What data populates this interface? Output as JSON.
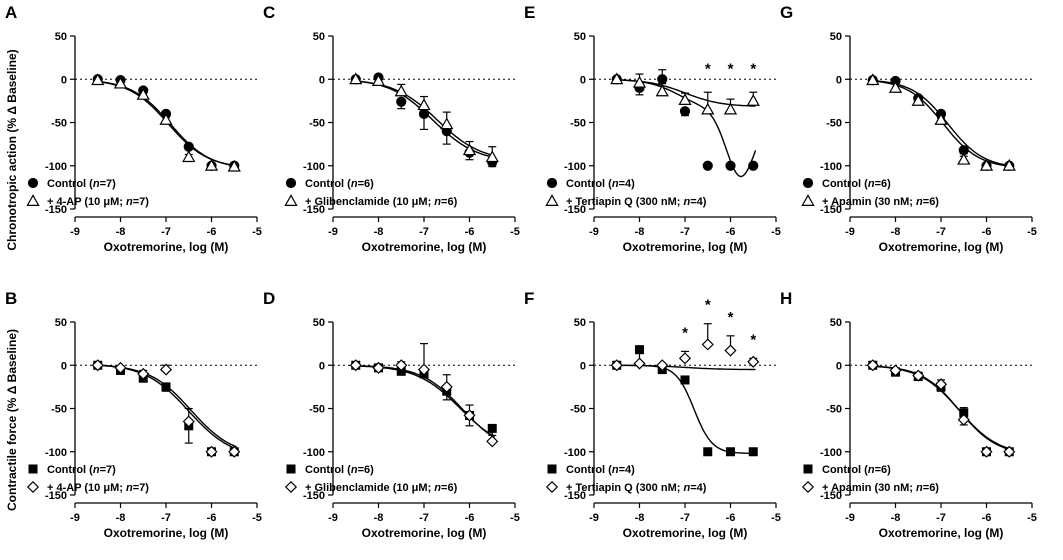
{
  "figure": {
    "y_axis_titles": [
      "Chronotropic action (% Δ Baseline)",
      "Contractile force (% Δ Baseline)"
    ]
  },
  "chart_data": [
    {
      "panel": "A",
      "type": "scatter",
      "title": "",
      "xlabel": "Oxotremorine, log (M)",
      "ylabel": "Chronotropic action (% Δ Baseline)",
      "xlim": [
        -9,
        -5
      ],
      "ylim": [
        -150,
        50
      ],
      "xticks": [
        -9,
        -8,
        -7,
        -6,
        -5
      ],
      "yticks": [
        50,
        0,
        -50,
        -100,
        -150
      ],
      "series": [
        {
          "name": "Control",
          "legend_label": "Control (n=7)",
          "marker": "circle",
          "x": [
            -8.5,
            -8,
            -7.5,
            -7,
            -6.5,
            -6,
            -5.5
          ],
          "y": [
            0,
            -1,
            -13,
            -40,
            -78,
            -100,
            -100
          ],
          "err": [
            1,
            1,
            2,
            3,
            3,
            1,
            1
          ],
          "fit": {
            "top": 0,
            "bottom": -104,
            "ec50": -6.9,
            "hill": 1
          }
        },
        {
          "name": "+ 4-AP",
          "legend_label": "+ 4-AP (10 μM; n=7)",
          "marker": "triangle",
          "x": [
            -8.5,
            -8,
            -7.5,
            -7,
            -6.5,
            -6,
            -5.5
          ],
          "y": [
            -1,
            -5,
            -18,
            -47,
            -90,
            -100,
            -101
          ],
          "err": [
            1,
            1,
            2,
            3,
            3,
            1,
            1
          ],
          "fit": {
            "top": 0,
            "bottom": -103,
            "ec50": -6.95,
            "hill": 1
          }
        }
      ],
      "annotations": []
    },
    {
      "panel": "C",
      "type": "scatter",
      "title": "",
      "xlabel": "Oxotremorine, log (M)",
      "ylabel": "",
      "xlim": [
        -9,
        -5
      ],
      "ylim": [
        -150,
        50
      ],
      "xticks": [
        -9,
        -8,
        -7,
        -6,
        -5
      ],
      "yticks": [
        50,
        0,
        -50,
        -100,
        -150
      ],
      "series": [
        {
          "name": "Control",
          "legend_label": "Control (n=6)",
          "marker": "circle",
          "x": [
            -8.5,
            -8,
            -7.5,
            -7,
            -6.5,
            -6,
            -5.5
          ],
          "y": [
            0,
            2,
            -26,
            -40,
            -60,
            -85,
            -96
          ],
          "err": [
            2,
            2,
            8,
            18,
            15,
            8,
            5
          ],
          "fit": {
            "top": 1,
            "bottom": -96,
            "ec50": -6.8,
            "hill": 0.9
          }
        },
        {
          "name": "+ Glibenclamide",
          "legend_label": "+ Glibenclamide (10 μM; n=6)",
          "marker": "triangle",
          "x": [
            -8.5,
            -8,
            -7.5,
            -7,
            -6.5,
            -6,
            -5.5
          ],
          "y": [
            0,
            -2,
            -14,
            -30,
            -52,
            -82,
            -90
          ],
          "err": [
            2,
            2,
            8,
            10,
            14,
            10,
            12
          ],
          "fit": {
            "top": 0,
            "bottom": -95,
            "ec50": -6.7,
            "hill": 0.9
          }
        }
      ],
      "annotations": []
    },
    {
      "panel": "E",
      "type": "scatter",
      "title": "",
      "xlabel": "Oxotremorine, log (M)",
      "ylabel": "",
      "xlim": [
        -9,
        -5
      ],
      "ylim": [
        -150,
        50
      ],
      "xticks": [
        -9,
        -8,
        -7,
        -6,
        -5
      ],
      "yticks": [
        50,
        0,
        -50,
        -100,
        -150
      ],
      "series": [
        {
          "name": "Control",
          "legend_label": "Control (n=4)",
          "marker": "circle",
          "x": [
            -8.5,
            -8,
            -7.5,
            -7,
            -6.5,
            -6,
            -5.5
          ],
          "y": [
            0,
            -10,
            0,
            -37,
            -100,
            -100,
            -100
          ],
          "err": [
            3,
            8,
            5,
            5,
            2,
            2,
            2
          ],
          "fit": "bell"
        },
        {
          "name": "+ Tertiapin Q",
          "legend_label": "+ Tertiapin Q (300 nM; n=4)",
          "marker": "triangle",
          "x": [
            -8.5,
            -8,
            -7.5,
            -7,
            -6.5,
            -6,
            -5.5
          ],
          "y": [
            0,
            -4,
            -14,
            -24,
            -35,
            -35,
            -25
          ],
          "err": [
            2,
            10,
            25,
            8,
            20,
            12,
            10
          ],
          "fit": "flat"
        }
      ],
      "annotations": [
        {
          "x": -6.5,
          "y": 0,
          "text": "*"
        },
        {
          "x": -6,
          "y": 0,
          "text": "*"
        },
        {
          "x": -5.5,
          "y": 0,
          "text": "*"
        }
      ]
    },
    {
      "panel": "G",
      "type": "scatter",
      "title": "",
      "xlabel": "Oxotremorine, log (M)",
      "ylabel": "",
      "xlim": [
        -9,
        -5
      ],
      "ylim": [
        -150,
        50
      ],
      "xticks": [
        -9,
        -8,
        -7,
        -6,
        -5
      ],
      "yticks": [
        50,
        0,
        -50,
        -100,
        -150
      ],
      "series": [
        {
          "name": "Control",
          "legend_label": "Control (n=6)",
          "marker": "circle",
          "x": [
            -8.5,
            -8,
            -7.5,
            -7,
            -6.5,
            -6,
            -5.5
          ],
          "y": [
            -1,
            -2,
            -22,
            -40,
            -82,
            -100,
            -100
          ],
          "err": [
            2,
            2,
            4,
            5,
            4,
            2,
            1
          ],
          "fit": {
            "top": 0,
            "bottom": -103,
            "ec50": -6.85,
            "hill": 1.1
          }
        },
        {
          "name": "+ Apamin",
          "legend_label": "+ Apamin (30 nM; n=6)",
          "marker": "triangle",
          "x": [
            -8.5,
            -8,
            -7.5,
            -7,
            -6.5,
            -6,
            -5.5
          ],
          "y": [
            -1,
            -10,
            -25,
            -47,
            -93,
            -100,
            -100
          ],
          "err": [
            2,
            2,
            4,
            5,
            4,
            2,
            1
          ],
          "fit": {
            "top": 0,
            "bottom": -103,
            "ec50": -6.95,
            "hill": 1.1
          }
        }
      ],
      "annotations": []
    },
    {
      "panel": "B",
      "type": "scatter",
      "title": "",
      "xlabel": "Oxotremorine, log (M)",
      "ylabel": "Contractile force (% Δ Baseline)",
      "xlim": [
        -9,
        -5
      ],
      "ylim": [
        -150,
        50
      ],
      "xticks": [
        -9,
        -8,
        -7,
        -6,
        -5
      ],
      "yticks": [
        50,
        0,
        -50,
        -100,
        -150
      ],
      "series": [
        {
          "name": "Control",
          "legend_label": "Control (n=7)",
          "marker": "square",
          "x": [
            -8.5,
            -8,
            -7.5,
            -7,
            -6.5,
            -6,
            -5.5
          ],
          "y": [
            0,
            -6,
            -15,
            -25,
            -70,
            -100,
            -100
          ],
          "err": [
            2,
            2,
            4,
            5,
            20,
            3,
            2
          ],
          "fit": {
            "top": 2,
            "bottom": -108,
            "ec50": -6.5,
            "hill": 0.9
          }
        },
        {
          "name": "+ 4-AP",
          "legend_label": "+ 4-AP (10 μM; n=7)",
          "marker": "diamond",
          "x": [
            -8.5,
            -8,
            -7.5,
            -7,
            -6.5,
            -6,
            -5.5
          ],
          "y": [
            0,
            -3,
            -10,
            -5,
            -65,
            -100,
            -100
          ],
          "err": [
            2,
            2,
            4,
            5,
            15,
            3,
            2
          ],
          "fit": {
            "top": 1,
            "bottom": -105,
            "ec50": -6.45,
            "hill": 0.95
          }
        }
      ],
      "annotations": []
    },
    {
      "panel": "D",
      "type": "scatter",
      "title": "",
      "xlabel": "Oxotremorine, log (M)",
      "ylabel": "",
      "xlim": [
        -9,
        -5
      ],
      "ylim": [
        -150,
        50
      ],
      "xticks": [
        -9,
        -8,
        -7,
        -6,
        -5
      ],
      "yticks": [
        50,
        0,
        -50,
        -100,
        -150
      ],
      "series": [
        {
          "name": "Control",
          "legend_label": "Control (n=6)",
          "marker": "square",
          "x": [
            -8.5,
            -8,
            -7.5,
            -7,
            -6.5,
            -6,
            -5.5
          ],
          "y": [
            0,
            -3,
            -7,
            -10,
            -30,
            -58,
            -73
          ],
          "err": [
            2,
            3,
            4,
            4,
            10,
            12,
            8
          ],
          "fit": {
            "top": 0,
            "bottom": -100,
            "ec50": -6.2,
            "hill": 0.9
          }
        },
        {
          "name": "+ Glibenclamide",
          "legend_label": "+ Glibenclamide (10 μM; n=6)",
          "marker": "diamond",
          "x": [
            -8.5,
            -8,
            -7.5,
            -7,
            -6.5,
            -6,
            -5.5
          ],
          "y": [
            0,
            -3,
            0,
            -5,
            -25,
            -58,
            -88
          ],
          "err": [
            2,
            3,
            4,
            30,
            14,
            12,
            12
          ],
          "fit": {
            "top": 0,
            "bottom": -102,
            "ec50": -6.15,
            "hill": 0.95
          }
        }
      ],
      "annotations": []
    },
    {
      "panel": "F",
      "type": "scatter",
      "title": "",
      "xlabel": "Oxotremorine, log (M)",
      "ylabel": "",
      "xlim": [
        -9,
        -5
      ],
      "ylim": [
        -150,
        50
      ],
      "xticks": [
        -9,
        -8,
        -7,
        -6,
        -5
      ],
      "yticks": [
        50,
        0,
        -50,
        -100,
        -150
      ],
      "series": [
        {
          "name": "Control",
          "legend_label": "Control (n=4)",
          "marker": "square",
          "x": [
            -8.5,
            -8,
            -7.5,
            -7,
            -6.5,
            -6,
            -5.5
          ],
          "y": [
            0,
            18,
            -5,
            -17,
            -100,
            -100,
            -100
          ],
          "err": [
            2,
            16,
            3,
            3,
            2,
            2,
            2
          ],
          "fit": {
            "top": 0,
            "bottom": -102,
            "ec50": -6.8,
            "hill": 2.2
          }
        },
        {
          "name": "+ Tertiapin Q",
          "legend_label": "+ Tertiapin Q (300 nM; n=4)",
          "marker": "diamond",
          "x": [
            -8.5,
            -8,
            -7.5,
            -7,
            -6.5,
            -6,
            -5.5
          ],
          "y": [
            0,
            2,
            0,
            8,
            24,
            17,
            4
          ],
          "err": [
            2,
            2,
            2,
            8,
            24,
            17,
            4
          ],
          "fit": "flat"
        }
      ],
      "annotations": [
        {
          "x": -7,
          "y": 0,
          "text": "*"
        },
        {
          "x": -6.5,
          "y": 0,
          "text": "*"
        },
        {
          "x": -6,
          "y": 0,
          "text": "*"
        },
        {
          "x": -5.5,
          "y": 0,
          "text": "*"
        }
      ]
    },
    {
      "panel": "H",
      "type": "scatter",
      "title": "",
      "xlabel": "Oxotremorine, log (M)",
      "ylabel": "",
      "xlim": [
        -9,
        -5
      ],
      "ylim": [
        -150,
        50
      ],
      "xticks": [
        -9,
        -8,
        -7,
        -6,
        -5
      ],
      "yticks": [
        50,
        0,
        -50,
        -100,
        -150
      ],
      "series": [
        {
          "name": "Control",
          "legend_label": "Control (n=6)",
          "marker": "square",
          "x": [
            -8.5,
            -8,
            -7.5,
            -7,
            -6.5,
            -6,
            -5.5
          ],
          "y": [
            0,
            -8,
            -13,
            -25,
            -55,
            -100,
            -100
          ],
          "err": [
            2,
            3,
            4,
            5,
            14,
            2,
            2
          ],
          "fit": {
            "top": 0,
            "bottom": -104,
            "ec50": -6.6,
            "hill": 1
          }
        },
        {
          "name": "+ Apamin",
          "legend_label": "+ Apamin (30 nM; n=6)",
          "marker": "diamond",
          "x": [
            -8.5,
            -8,
            -7.5,
            -7,
            -6.5,
            -6,
            -5.5
          ],
          "y": [
            0,
            -6,
            -12,
            -22,
            -63,
            -100,
            -100
          ],
          "err": [
            2,
            3,
            4,
            5,
            14,
            2,
            2
          ],
          "fit": {
            "top": 0,
            "bottom": -104,
            "ec50": -6.6,
            "hill": 1.05
          }
        }
      ],
      "annotations": []
    }
  ]
}
